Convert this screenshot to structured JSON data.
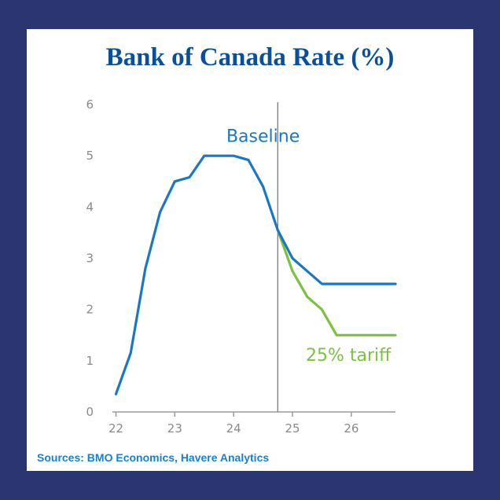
{
  "title": "Bank of Canada Rate (%)",
  "source": "Sources: BMO Economics, Havere Analytics",
  "chart_data": {
    "type": "line",
    "title": "Bank of Canada Rate (%)",
    "xlabel": "",
    "ylabel": "",
    "xlim": [
      21.94,
      26.75
    ],
    "ylim": [
      0,
      6
    ],
    "x_tick_labels": [
      "22",
      "23",
      "24",
      "25",
      "26"
    ],
    "x_tick_values": [
      22,
      23,
      24,
      25,
      26
    ],
    "y_tick_labels": [
      "0",
      "1",
      "2",
      "3",
      "4",
      "5",
      "6"
    ],
    "y_tick_values": [
      0,
      1,
      2,
      3,
      4,
      5,
      6
    ],
    "vertical_marker_x": 24.75,
    "grid": false,
    "series": [
      {
        "name": "Baseline",
        "color": "#1a78c2",
        "points": [
          [
            22.0,
            0.35
          ],
          [
            22.25,
            1.15
          ],
          [
            22.5,
            2.8
          ],
          [
            22.75,
            3.9
          ],
          [
            23.0,
            4.5
          ],
          [
            23.25,
            4.58
          ],
          [
            23.5,
            5.0
          ],
          [
            23.75,
            5.0
          ],
          [
            24.0,
            5.0
          ],
          [
            24.25,
            4.92
          ],
          [
            24.5,
            4.4
          ],
          [
            24.75,
            3.55
          ],
          [
            25.0,
            3.0
          ],
          [
            25.25,
            2.75
          ],
          [
            25.5,
            2.5
          ],
          [
            25.75,
            2.5
          ],
          [
            26.0,
            2.5
          ],
          [
            26.25,
            2.5
          ],
          [
            26.5,
            2.5
          ],
          [
            26.75,
            2.5
          ]
        ],
        "label_at": [
          24.5,
          5.27
        ]
      },
      {
        "name": "25% tariff",
        "color": "#7cc242",
        "points": [
          [
            24.75,
            3.55
          ],
          [
            25.0,
            2.75
          ],
          [
            25.25,
            2.25
          ],
          [
            25.5,
            2.0
          ],
          [
            25.75,
            1.5
          ],
          [
            26.0,
            1.5
          ],
          [
            26.25,
            1.5
          ],
          [
            26.5,
            1.5
          ],
          [
            26.75,
            1.5
          ]
        ],
        "label_at": [
          25.95,
          1.0
        ]
      }
    ]
  }
}
